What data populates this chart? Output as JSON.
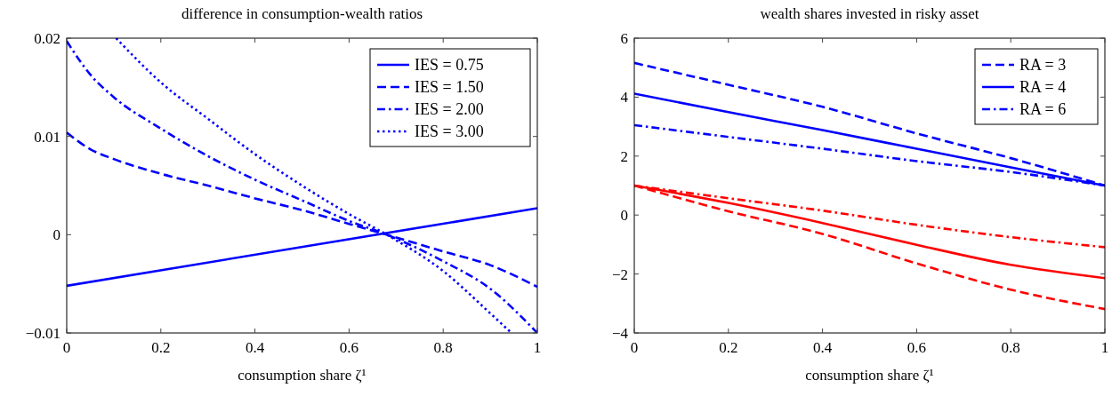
{
  "chart_data": [
    {
      "type": "line",
      "title": "difference in consumption-wealth ratios",
      "xlabel": "consumption share ζ¹",
      "xlim": [
        0,
        1
      ],
      "xticks": [
        0,
        0.2,
        0.4,
        0.6,
        0.8,
        1
      ],
      "ylim": [
        -0.01,
        0.02
      ],
      "yticks": [
        {
          "value": -0.01,
          "label": "−0.01"
        },
        0,
        0.01,
        0.02
      ],
      "legend": "top right",
      "series": [
        {
          "name": "IES = 0.75",
          "color": "#0000ff",
          "line_style": "solid",
          "x": [
            0,
            1
          ],
          "values": [
            -0.0052,
            0.0027
          ]
        },
        {
          "name": "IES = 1.50",
          "color": "#0000ff",
          "line_style": "dashed",
          "x": [
            0,
            0.05,
            0.1,
            0.2,
            0.3,
            0.4,
            0.5,
            0.6,
            0.68,
            0.8,
            0.9,
            1
          ],
          "values": [
            0.0104,
            0.0087,
            0.0077,
            0.0062,
            0.005,
            0.0037,
            0.0025,
            0.0011,
            0,
            -0.0017,
            -0.0031,
            -0.0053
          ]
        },
        {
          "name": "IES = 2.00",
          "color": "#0000ff",
          "line_style": "dashdot",
          "x": [
            0,
            0.05,
            0.1,
            0.2,
            0.3,
            0.4,
            0.5,
            0.6,
            0.68,
            0.8,
            0.9,
            1
          ],
          "values": [
            0.0197,
            0.0163,
            0.014,
            0.0108,
            0.008,
            0.0056,
            0.0035,
            0.0014,
            0,
            -0.0027,
            -0.0055,
            -0.01
          ]
        },
        {
          "name": "IES = 3.00",
          "color": "#0000ff",
          "line_style": "dotted",
          "x": [
            0.105,
            0.2,
            0.3,
            0.4,
            0.5,
            0.6,
            0.68,
            0.8,
            0.9,
            0.945
          ],
          "values": [
            0.02,
            0.0155,
            0.0118,
            0.0082,
            0.005,
            0.0021,
            0,
            -0.0037,
            -0.008,
            -0.01
          ]
        }
      ]
    },
    {
      "type": "line",
      "title": "wealth shares invested in risky asset",
      "xlabel": "consumption share ζ¹",
      "xlim": [
        0,
        1
      ],
      "xticks": [
        0,
        0.2,
        0.4,
        0.6,
        0.8,
        1
      ],
      "ylim": [
        -4,
        6
      ],
      "yticks": [
        {
          "value": -4,
          "label": "−4"
        },
        {
          "value": -2,
          "label": "−2"
        },
        0,
        2,
        4,
        6
      ],
      "legend": "top right",
      "x": [
        0,
        0.2,
        0.4,
        0.6,
        0.8,
        1
      ],
      "series": [
        {
          "name": "RA = 3",
          "color": "#0000ff",
          "line_style": "dashed",
          "values": [
            5.16,
            4.42,
            3.67,
            2.77,
            1.93,
            1.0
          ]
        },
        {
          "name": "RA = 4",
          "color": "#0000ff",
          "line_style": "solid",
          "values": [
            4.12,
            3.49,
            2.88,
            2.25,
            1.62,
            1.0
          ]
        },
        {
          "name": "RA = 6",
          "color": "#0000ff",
          "line_style": "dashdot",
          "values": [
            3.05,
            2.65,
            2.25,
            1.83,
            1.46,
            1.0
          ]
        },
        {
          "color": "#ff0000",
          "line_style": "dashed",
          "values": [
            1.0,
            0.13,
            -0.64,
            -1.64,
            -2.53,
            -3.19
          ]
        },
        {
          "color": "#ff0000",
          "line_style": "solid",
          "values": [
            1.0,
            0.41,
            -0.27,
            -1.01,
            -1.69,
            -2.14
          ]
        },
        {
          "color": "#ff0000",
          "line_style": "dashdot",
          "values": [
            1.0,
            0.57,
            0.15,
            -0.33,
            -0.75,
            -1.09
          ]
        }
      ]
    }
  ]
}
